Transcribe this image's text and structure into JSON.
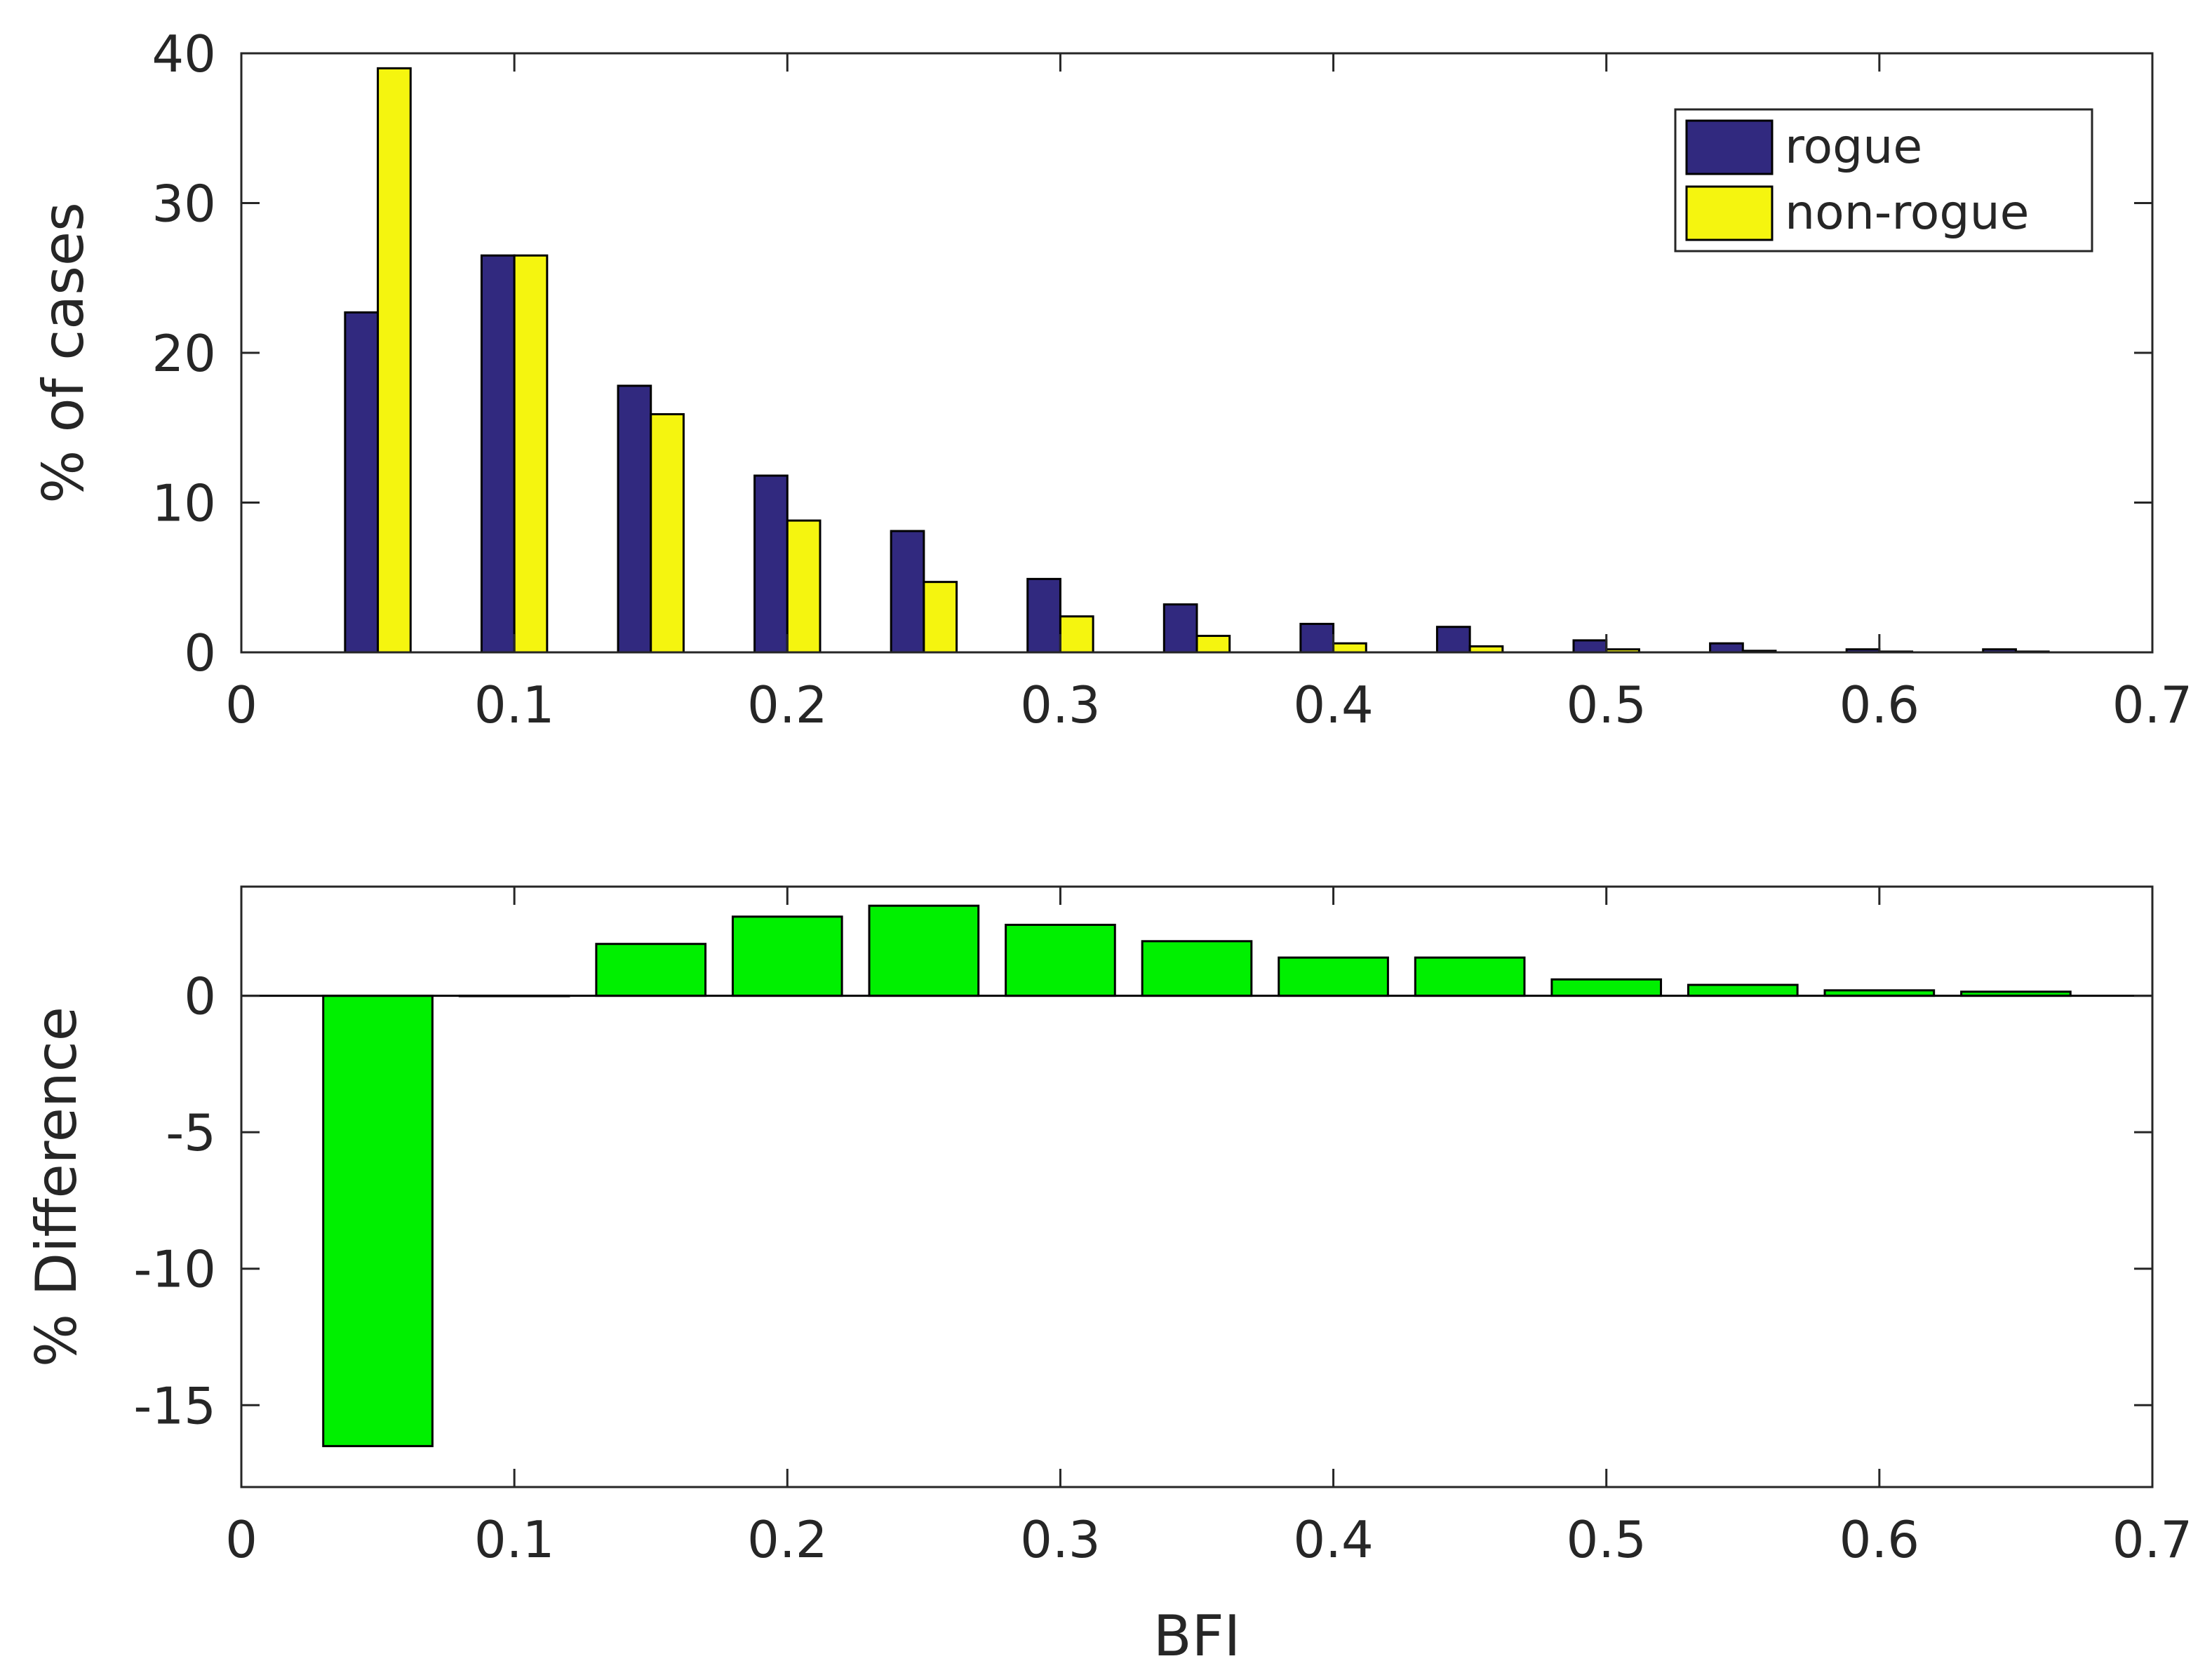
{
  "chart_data": [
    {
      "type": "bar",
      "ylabel": "% of cases",
      "xlabel": "",
      "xlim": [
        0,
        0.7
      ],
      "ylim": [
        0,
        40
      ],
      "xticks": [
        "0",
        "0.1",
        "0.2",
        "0.3",
        "0.4",
        "0.5",
        "0.6",
        "0.7"
      ],
      "yticks": [
        "0",
        "10",
        "20",
        "30",
        "40"
      ],
      "grid": false,
      "legend_position": "top-right",
      "x": [
        0.05,
        0.1,
        0.15,
        0.2,
        0.25,
        0.3,
        0.35,
        0.4,
        0.45,
        0.5,
        0.55,
        0.6,
        0.65
      ],
      "series": [
        {
          "name": "rogue",
          "color": "#31297f",
          "values": [
            22.7,
            26.5,
            17.8,
            11.8,
            8.1,
            4.9,
            3.2,
            1.9,
            1.7,
            0.8,
            0.6,
            0.2,
            0.2
          ]
        },
        {
          "name": "non-rogue",
          "color": "#f5f50f",
          "values": [
            39.0,
            26.5,
            15.9,
            8.8,
            4.7,
            2.4,
            1.1,
            0.6,
            0.4,
            0.2,
            0.1,
            0.05,
            0.05
          ]
        }
      ]
    },
    {
      "type": "bar",
      "ylabel": "% Difference",
      "xlabel": "BFI",
      "xlim": [
        0,
        0.7
      ],
      "ylim": [
        -18,
        4
      ],
      "xticks": [
        "0",
        "0.1",
        "0.2",
        "0.3",
        "0.4",
        "0.5",
        "0.6",
        "0.7"
      ],
      "yticks": [
        "-15",
        "-10",
        "-5",
        "0"
      ],
      "grid": false,
      "x": [
        0.05,
        0.1,
        0.15,
        0.2,
        0.25,
        0.3,
        0.35,
        0.4,
        0.45,
        0.5,
        0.55,
        0.6,
        0.65
      ],
      "series": [
        {
          "color": "#00f000",
          "values": [
            -16.5,
            0.0,
            1.9,
            2.9,
            3.3,
            2.6,
            2.0,
            1.4,
            1.4,
            0.6,
            0.4,
            0.2,
            0.15
          ]
        }
      ]
    }
  ]
}
